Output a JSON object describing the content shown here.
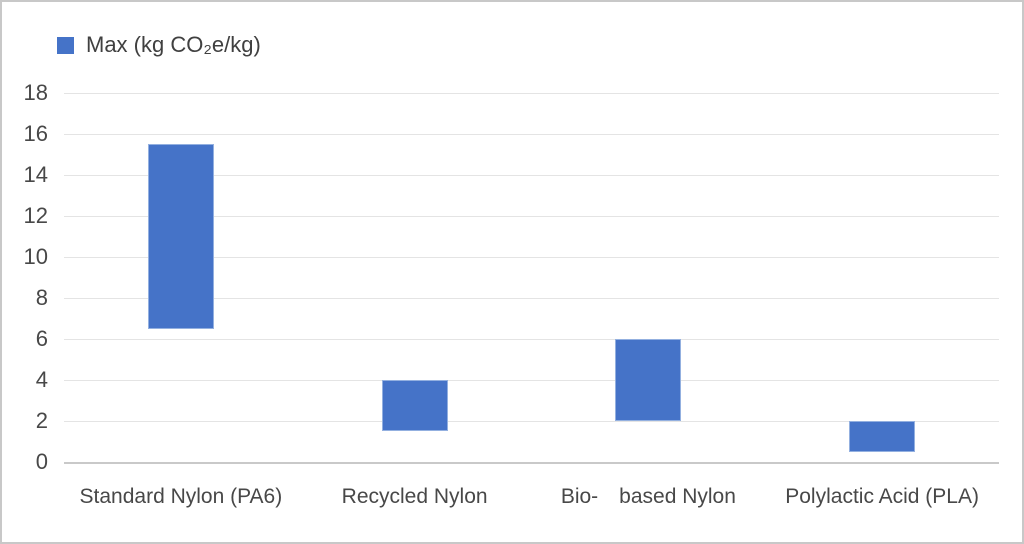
{
  "legend": {
    "marker_icon": "legend-swatch-square",
    "marker_color": "#4573c8"
  },
  "chart_data": {
    "type": "bar",
    "subtype": "floating-range-bars",
    "title": "",
    "xlabel": "",
    "ylabel": "",
    "categories": [
      "Standard Nylon (PA6)",
      "Recycled Nylon",
      "Bio- based Nylon",
      "Polylactic Acid (PLA)"
    ],
    "category_display_labels": [
      "Standard Nylon (PA6)",
      "Recycled Nylon",
      "Bio- based Nylon",
      "Polylactic Acid (PLA)"
    ],
    "series": [
      {
        "name": "Max (kg CO₂e/kg)",
        "ranges": [
          {
            "category": "Standard Nylon (PA6)",
            "min": 6.5,
            "max": 15.5
          },
          {
            "category": "Recycled Nylon",
            "min": 1.5,
            "max": 4.0
          },
          {
            "category": "Bio- based Nylon",
            "min": 2.0,
            "max": 6.0
          },
          {
            "category": "Polylactic Acid (PLA)",
            "min": 0.5,
            "max": 2.0
          }
        ],
        "color": "#4573c8"
      }
    ],
    "ylim": [
      0,
      18
    ],
    "ytick_step": 2,
    "yticks": [
      0,
      2,
      4,
      6,
      8,
      10,
      12,
      14,
      16,
      18
    ],
    "grid": true,
    "gridline_color": "#e4e4e4",
    "axis_line_color": "#c9c9c9",
    "legend_position": "top-left",
    "plot_bg_color": "#ffffff"
  }
}
